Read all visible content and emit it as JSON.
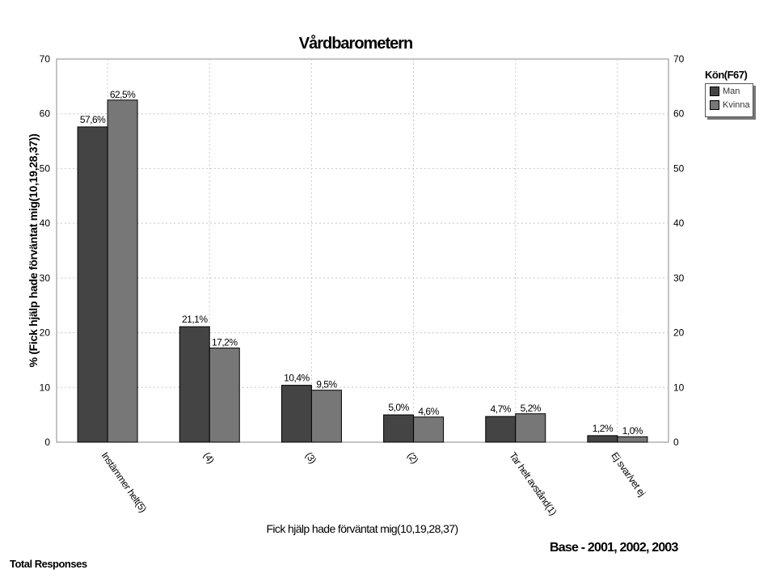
{
  "chart_data": {
    "type": "bar",
    "title": "Vårdbarometern",
    "xlabel": "Fick hjälp hade förväntat mig(10,19,28,37)",
    "ylabel": "% (Fick hjälp hade förväntat mig(10,19,28,37))",
    "ylim": [
      0,
      70
    ],
    "yticks": [
      0,
      10,
      20,
      30,
      40,
      50,
      60,
      70
    ],
    "categories": [
      "Instämmer helt(5)",
      "(4)",
      "(3)",
      "(2)",
      "Tar helt avstånd(1)",
      "Ej svar/vet ej"
    ],
    "series": [
      {
        "name": "Man",
        "color": "#444444",
        "values": [
          57.6,
          21.1,
          10.4,
          5.0,
          4.7,
          1.2
        ],
        "labels": [
          "57,6%",
          "21,1%",
          "10,4%",
          "5,0%",
          "4,7%",
          "1,2%"
        ]
      },
      {
        "name": "Kvinna",
        "color": "#777777",
        "values": [
          62.5,
          17.2,
          9.5,
          4.6,
          5.2,
          1.0
        ],
        "labels": [
          "62,5%",
          "17,2%",
          "9,5%",
          "4,6%",
          "5,2%",
          "1,0%"
        ]
      }
    ],
    "legend_title": "Kön(F67)",
    "legend_position": "top-right",
    "grid": true
  },
  "footer": {
    "left": "Total Responses",
    "right": "Base - 2001, 2002, 2003"
  }
}
